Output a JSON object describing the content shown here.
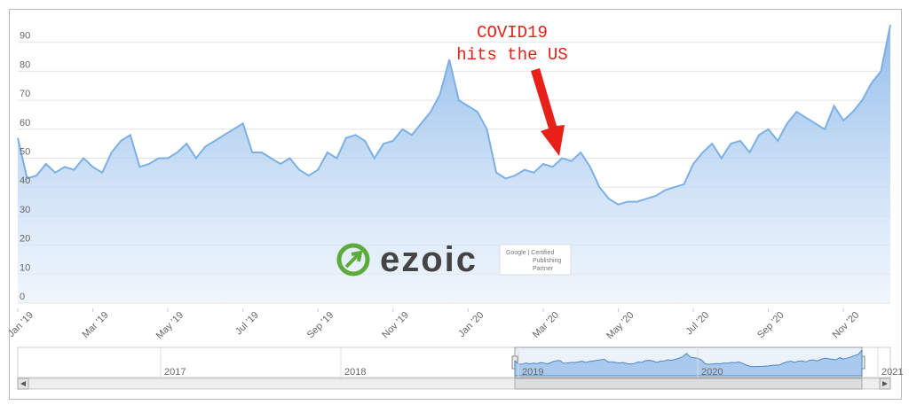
{
  "chart_data": {
    "type": "area",
    "color": "#7cb0e4",
    "categories": [
      "Jan '19",
      null,
      null,
      null,
      null,
      null,
      null,
      null,
      "Mar '19",
      null,
      null,
      null,
      null,
      null,
      null,
      null,
      "May '19",
      null,
      null,
      null,
      null,
      null,
      null,
      null,
      "Jul '19",
      null,
      null,
      null,
      null,
      null,
      null,
      null,
      "Sep '19",
      null,
      null,
      null,
      null,
      null,
      null,
      null,
      "Nov '19",
      null,
      null,
      null,
      null,
      null,
      null,
      null,
      "Jan '20",
      null,
      null,
      null,
      null,
      null,
      null,
      null,
      "Mar '20",
      null,
      null,
      null,
      null,
      null,
      null,
      null,
      "May '20",
      null,
      null,
      null,
      null,
      null,
      null,
      null,
      "Jul '20",
      null,
      null,
      null,
      null,
      null,
      null,
      null,
      "Sep '20",
      null,
      null,
      null,
      null,
      null,
      null,
      null,
      "Nov '20",
      null,
      null,
      null,
      null,
      null
    ],
    "values": [
      57,
      43,
      44,
      48,
      45,
      47,
      46,
      50,
      47,
      45,
      52,
      56,
      58,
      47,
      48,
      50,
      50,
      52,
      55,
      50,
      54,
      56,
      58,
      60,
      62,
      52,
      52,
      50,
      48,
      50,
      46,
      44,
      46,
      52,
      50,
      57,
      58,
      56,
      50,
      55,
      56,
      60,
      58,
      62,
      66,
      72,
      84,
      70,
      68,
      66,
      60,
      45,
      43,
      44,
      46,
      45,
      48,
      47,
      50,
      49,
      52,
      47,
      40,
      36,
      34,
      35,
      35,
      36,
      37,
      39,
      40,
      41,
      48,
      52,
      55,
      50,
      55,
      56,
      52,
      58,
      60,
      56,
      62,
      66,
      64,
      62,
      60,
      68,
      63,
      66,
      70,
      76,
      80,
      96
    ],
    "ylim": [
      0,
      100
    ],
    "yticks": [
      0,
      10,
      20,
      30,
      40,
      50,
      60,
      70,
      80,
      90
    ],
    "grid": true,
    "annotation": [
      "COVID19",
      "hits the US"
    ],
    "annotation_color": "#e8201a",
    "watermark": {
      "brand": "ezoic",
      "badge": [
        "Google | Certified",
        "Publishing",
        "Partner"
      ]
    },
    "navigator": {
      "labels": [
        "2017",
        "2018",
        "2019",
        "2020",
        "2021"
      ]
    }
  }
}
